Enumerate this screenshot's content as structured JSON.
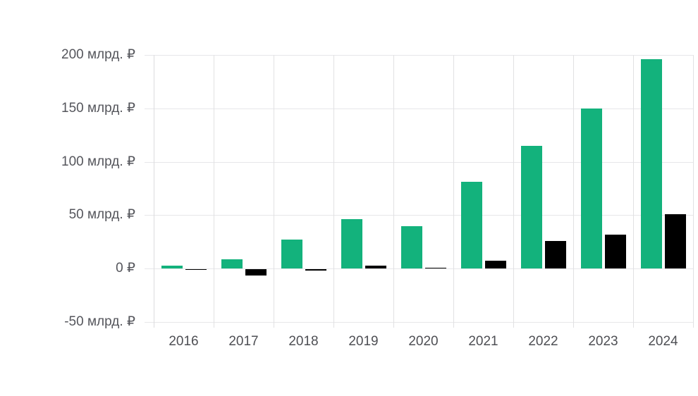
{
  "chart_data": {
    "type": "bar",
    "title": "",
    "categories": [
      "2016",
      "2017",
      "2018",
      "2019",
      "2020",
      "2021",
      "2022",
      "2023",
      "2024"
    ],
    "series": [
      {
        "name": "green-series",
        "color": "#13b27c",
        "values": [
          2.5,
          9,
          27,
          46,
          40,
          81,
          115,
          150,
          196
        ]
      },
      {
        "name": "black-series",
        "color": "#000000",
        "values": [
          -0.5,
          -6,
          -1.5,
          2.5,
          1,
          7.5,
          26,
          32,
          51
        ]
      }
    ],
    "unit": "млрд. ₽",
    "y_axis": {
      "range": [
        -50,
        200
      ],
      "tick_values": [
        200,
        150,
        100,
        50,
        0,
        -50
      ],
      "tick_labels": [
        "200 млрд. ₽",
        "150 млрд. ₽",
        "100 млрд. ₽",
        "50 млрд. ₽",
        "0 ₽",
        "-50 млрд. ₽"
      ]
    },
    "x_axis": {
      "tick_labels": [
        "2016",
        "2017",
        "2018",
        "2019",
        "2020",
        "2021",
        "2022",
        "2023",
        "2024"
      ]
    },
    "grid": "both",
    "legend": "none",
    "colors": {
      "background": "#ffffff",
      "grid_horizontal": "#e7e7e9",
      "grid_vertical": "#e1e1e3",
      "y_label_text": "#55565c",
      "x_label_text": "#4e4f54"
    }
  }
}
